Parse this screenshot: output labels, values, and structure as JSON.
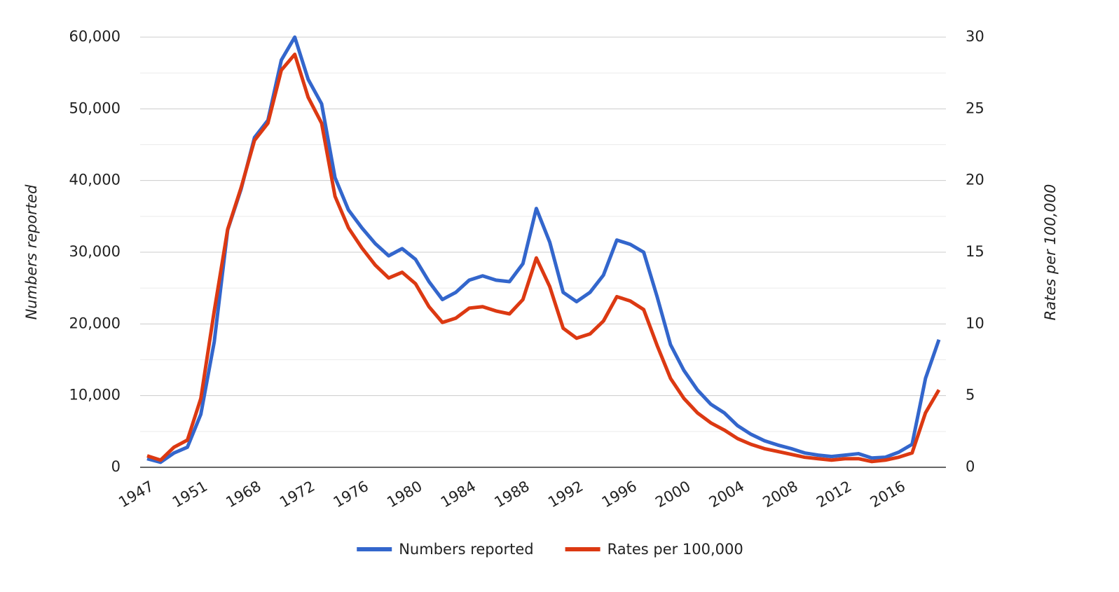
{
  "chart_data": {
    "type": "line",
    "categories": [
      "1947",
      null,
      null,
      null,
      "1951",
      null,
      null,
      null,
      "1968",
      null,
      null,
      null,
      "1972",
      null,
      null,
      null,
      "1976",
      null,
      null,
      null,
      "1980",
      null,
      null,
      null,
      "1984",
      null,
      null,
      null,
      "1988",
      null,
      null,
      null,
      "1992",
      null,
      null,
      null,
      "1996",
      null,
      null,
      null,
      "2000",
      null,
      null,
      null,
      "2004",
      null,
      null,
      null,
      "2008",
      null,
      null,
      null,
      "2012",
      null,
      null,
      null,
      "2016",
      null,
      null,
      null
    ],
    "series": [
      {
        "name": "Numbers reported",
        "color": "#3366cc",
        "values": [
          1200,
          700,
          2000,
          2800,
          7400,
          17500,
          33100,
          38800,
          46000,
          48400,
          56800,
          60000,
          54100,
          50700,
          40400,
          35900,
          33400,
          31200,
          29500,
          30500,
          29000,
          25900,
          23400,
          24400,
          26100,
          26700,
          26100,
          25900,
          28400,
          36100,
          31400,
          24400,
          23100,
          24400,
          26800,
          31700,
          31100,
          30000,
          23800,
          17100,
          13500,
          10800,
          8800,
          7600,
          5800,
          4600,
          3700,
          3100,
          2600,
          2000,
          1700,
          1500,
          1700,
          1900,
          1300,
          1400,
          2100,
          3200,
          12400,
          17800
        ]
      },
      {
        "name": "Rates per 100,000",
        "color": "#dc3912",
        "axis": "y2",
        "values": [
          0.8,
          0.5,
          1.4,
          1.9,
          4.8,
          10.9,
          16.6,
          19.5,
          22.8,
          24.0,
          27.7,
          28.8,
          25.8,
          24.0,
          18.9,
          16.7,
          15.3,
          14.1,
          13.2,
          13.6,
          12.8,
          11.2,
          10.1,
          10.4,
          11.1,
          11.2,
          10.9,
          10.7,
          11.7,
          14.6,
          12.6,
          9.7,
          9.0,
          9.3,
          10.2,
          11.9,
          11.6,
          11.0,
          8.5,
          6.2,
          4.8,
          3.8,
          3.1,
          2.6,
          2.0,
          1.6,
          1.3,
          1.1,
          0.9,
          0.7,
          0.6,
          0.5,
          0.6,
          0.6,
          0.4,
          0.5,
          0.7,
          1.0,
          3.8,
          5.4
        ]
      }
    ],
    "ylabel": "Numbers reported",
    "y2label": "Rates per 100,000",
    "ylim": [
      0,
      60000
    ],
    "yticks": [
      0,
      {
        "value": 10000,
        "label": "10,000"
      },
      {
        "value": 20000,
        "label": "20,000"
      },
      {
        "value": 30000,
        "label": "30,000"
      },
      {
        "value": 40000,
        "label": "40,000"
      },
      {
        "value": 50000,
        "label": "50,000"
      },
      {
        "value": 60000,
        "label": "60,000"
      }
    ],
    "y_minor_ticks": [
      5000,
      15000,
      25000,
      35000,
      45000,
      55000
    ],
    "y2lim": [
      0,
      30
    ],
    "y2ticks": [
      0,
      5,
      10,
      15,
      20,
      25,
      30
    ],
    "grid": true,
    "legend": "bottom"
  }
}
